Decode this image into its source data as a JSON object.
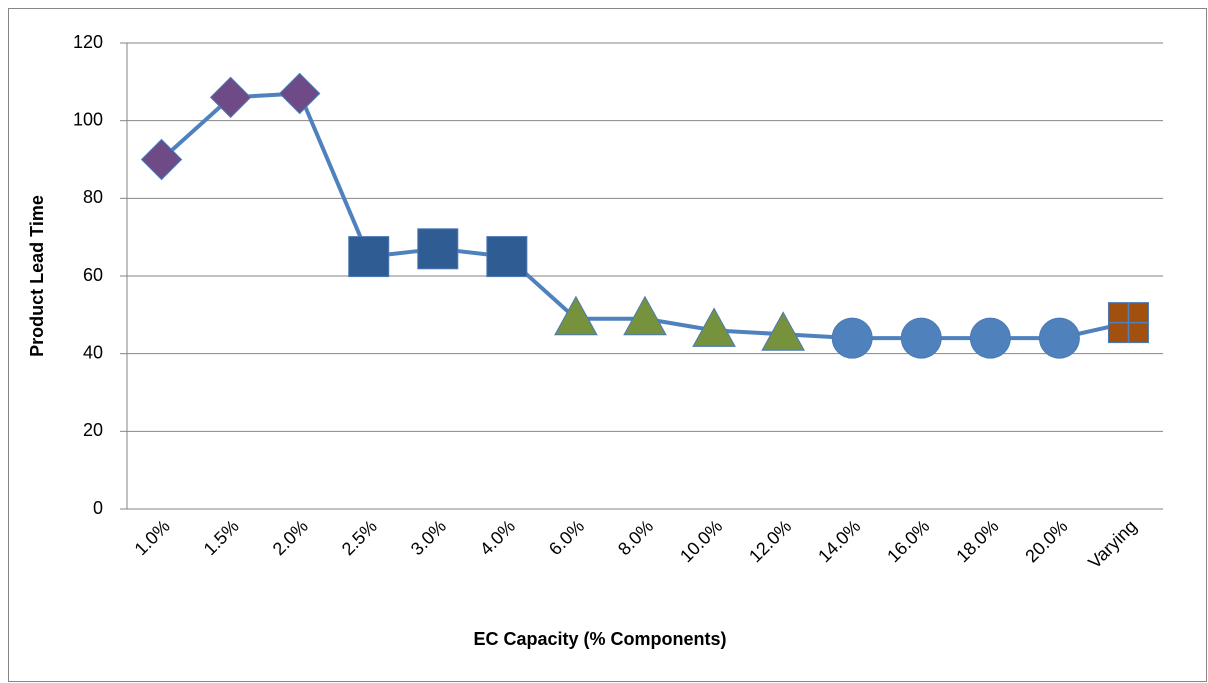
{
  "chart_data": {
    "type": "line",
    "categories": [
      "1.0%",
      "1.5%",
      "2.0%",
      "2.5%",
      "3.0%",
      "4.0%",
      "6.0%",
      "8.0%",
      "10.0%",
      "12.0%",
      "14.0%",
      "16.0%",
      "18.0%",
      "20.0%",
      "Varying"
    ],
    "values": [
      90,
      106,
      107,
      65,
      67,
      65,
      49,
      49,
      46,
      45,
      44,
      44,
      44,
      44,
      48
    ],
    "color": "#4f81bd",
    "markers": [
      "diamond",
      "diamond",
      "diamond",
      "square",
      "square",
      "square",
      "triangle",
      "triangle",
      "triangle",
      "triangle",
      "circle",
      "circle",
      "circle",
      "circle",
      "square-cross"
    ],
    "marker_colors": [
      "#6e4b86",
      "#6e4b86",
      "#6e4b86",
      "#2e5c93",
      "#2e5c93",
      "#2e5c93",
      "#76923c",
      "#76923c",
      "#76923c",
      "#76923c",
      "#4f81bd",
      "#4f81bd",
      "#4f81bd",
      "#4f81bd",
      "#a1500f"
    ],
    "xlabel": "EC Capacity (% Components)",
    "ylabel": "Product Lead Time",
    "ylim": [
      0,
      120
    ],
    "yticks": [
      0,
      20,
      40,
      60,
      80,
      100,
      120
    ],
    "grid": true
  }
}
